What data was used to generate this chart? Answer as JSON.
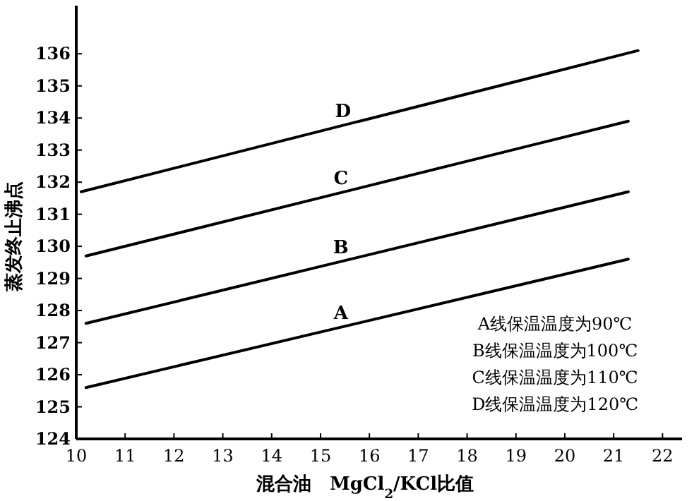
{
  "chart_data": {
    "type": "line",
    "xlabel": "混合油　MgCl$_{2}$/KCl比值",
    "ylabel": "蒸发终止沸点",
    "xlim": [
      10,
      22.4
    ],
    "ylim": [
      124,
      137.5
    ],
    "xticks": [
      10,
      11,
      12,
      13,
      14,
      15,
      16,
      17,
      18,
      19,
      20,
      21,
      22
    ],
    "yticks": [
      124,
      125,
      126,
      127,
      128,
      129,
      130,
      131,
      132,
      133,
      134,
      135,
      136
    ],
    "grid": false,
    "marker": "none",
    "line_style": "solid",
    "series": [
      {
        "name": "A",
        "color": "#000000",
        "x": [
          10.2,
          21.3
        ],
        "values": [
          125.6,
          129.6
        ]
      },
      {
        "name": "B",
        "color": "#000000",
        "x": [
          10.2,
          21.3
        ],
        "values": [
          127.6,
          131.7
        ]
      },
      {
        "name": "C",
        "color": "#000000",
        "x": [
          10.2,
          21.3
        ],
        "values": [
          129.7,
          133.9
        ]
      },
      {
        "name": "D",
        "color": "#000000",
        "x": [
          10.1,
          21.5
        ],
        "values": [
          131.7,
          136.1
        ]
      }
    ],
    "annotations": [
      "A线保温温度为90℃",
      "B线保温温度为100℃",
      "C线保温温度为110℃",
      "D线保温温度为120℃"
    ]
  }
}
